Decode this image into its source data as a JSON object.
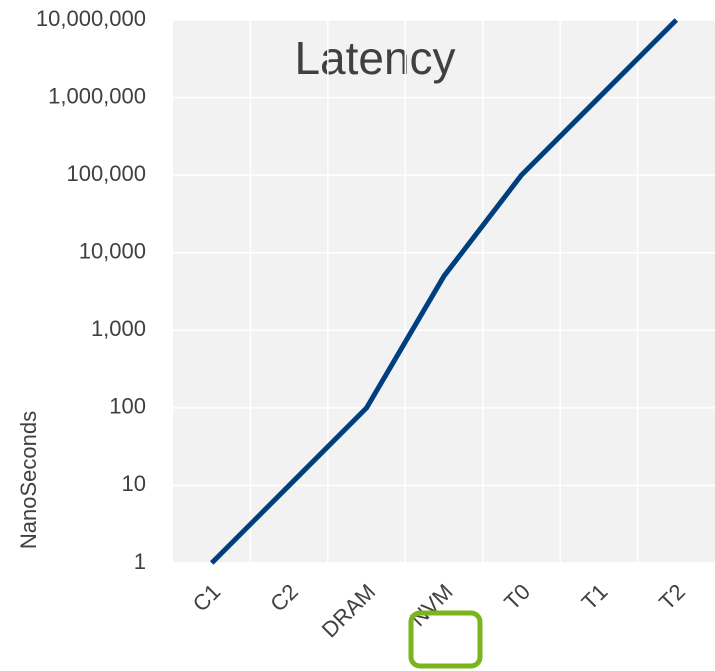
{
  "chart_data": {
    "type": "line",
    "title": "Latency",
    "y_label": "NanoSeconds",
    "categories": [
      "C1",
      "C2",
      "DRAM",
      "NVM",
      "T0",
      "T1",
      "T2"
    ],
    "series": [
      {
        "name": "Latency",
        "color": "#003f7f",
        "values": [
          1,
          10,
          100,
          5000,
          100000,
          1000000,
          10000000
        ]
      }
    ],
    "log_y": true,
    "grid": true,
    "ylim": [
      1,
      10000000
    ],
    "yticks": [
      1,
      10,
      100,
      {
        "value": 1000,
        "label": "1,000"
      },
      {
        "value": 10000,
        "label": "10,000"
      },
      {
        "value": 100000,
        "label": "100,000"
      },
      {
        "value": 1000000,
        "label": "1,000,000"
      },
      {
        "value": 10000000,
        "label": "10,000,000"
      }
    ]
  }
}
